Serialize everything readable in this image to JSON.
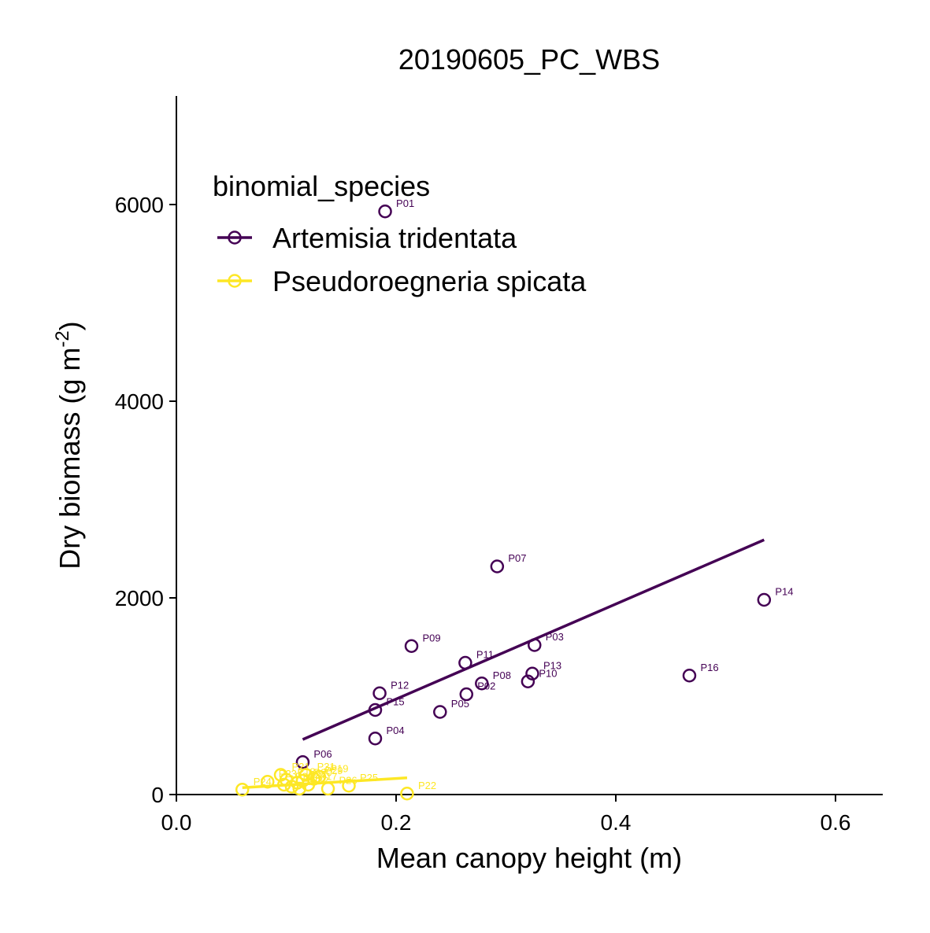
{
  "chart_data": {
    "type": "scatter",
    "title": "20190605_PC_WBS",
    "xlabel": "Mean canopy height (m)",
    "ylabel_main": "Dry biomass (g m",
    "ylabel_sup": "-2",
    "ylabel_close": ")",
    "xlim": [
      0.0,
      0.64
    ],
    "ylim": [
      0,
      7100
    ],
    "x_ticks": [
      0.0,
      0.2,
      0.4,
      0.6
    ],
    "x_tick_labels": [
      "0.0",
      "0.2",
      "0.4",
      "0.6"
    ],
    "y_ticks": [
      0,
      2000,
      4000,
      6000
    ],
    "y_tick_labels": [
      "0",
      "2000",
      "4000",
      "6000"
    ],
    "grid": false,
    "legend": {
      "title": "binomial_species",
      "placement": "top-left"
    },
    "series": [
      {
        "name": "Artemisia tridentata",
        "color": "#440154",
        "points": [
          {
            "label": "P01",
            "x": 0.19,
            "y": 5930
          },
          {
            "label": "P02",
            "x": 0.264,
            "y": 1020
          },
          {
            "label": "P03",
            "x": 0.326,
            "y": 1520
          },
          {
            "label": "P04",
            "x": 0.181,
            "y": 570
          },
          {
            "label": "P05",
            "x": 0.24,
            "y": 840
          },
          {
            "label": "P06",
            "x": 0.115,
            "y": 330
          },
          {
            "label": "P07",
            "x": 0.292,
            "y": 2320
          },
          {
            "label": "P08",
            "x": 0.278,
            "y": 1130
          },
          {
            "label": "P09",
            "x": 0.214,
            "y": 1510
          },
          {
            "label": "P10",
            "x": 0.32,
            "y": 1150
          },
          {
            "label": "P11",
            "x": 0.263,
            "y": 1340
          },
          {
            "label": "P12",
            "x": 0.185,
            "y": 1030
          },
          {
            "label": "P13",
            "x": 0.324,
            "y": 1230
          },
          {
            "label": "P14",
            "x": 0.535,
            "y": 1980
          },
          {
            "label": "P15",
            "x": 0.181,
            "y": 860
          },
          {
            "label": "P16",
            "x": 0.467,
            "y": 1210
          }
        ],
        "fit": {
          "x": [
            0.115,
            0.535
          ],
          "y": [
            560,
            2590
          ]
        }
      },
      {
        "name": "Pseudoroegneria spicata",
        "color": "#FDE725",
        "points": [
          {
            "label": "P17",
            "x": 0.12,
            "y": 100
          },
          {
            "label": "P18",
            "x": 0.1,
            "y": 150
          },
          {
            "label": "P19",
            "x": 0.13,
            "y": 180
          },
          {
            "label": "P20",
            "x": 0.115,
            "y": 140
          },
          {
            "label": "P21",
            "x": 0.095,
            "y": 200
          },
          {
            "label": "P22",
            "x": 0.21,
            "y": 10
          },
          {
            "label": "P23",
            "x": 0.083,
            "y": 130
          },
          {
            "label": "P24",
            "x": 0.06,
            "y": 50
          },
          {
            "label": "P25",
            "x": 0.157,
            "y": 90
          },
          {
            "label": "P26",
            "x": 0.138,
            "y": 60
          },
          {
            "label": "P27",
            "x": 0.11,
            "y": 120
          },
          {
            "label": "P28",
            "x": 0.105,
            "y": 80
          },
          {
            "label": "P29",
            "x": 0.125,
            "y": 160
          },
          {
            "label": "P30",
            "x": 0.098,
            "y": 100
          },
          {
            "label": "P31",
            "x": 0.118,
            "y": 200
          },
          {
            "label": "P32",
            "x": 0.112,
            "y": 60
          }
        ],
        "fit": {
          "x": [
            0.06,
            0.21
          ],
          "y": [
            70,
            170
          ]
        }
      }
    ]
  }
}
